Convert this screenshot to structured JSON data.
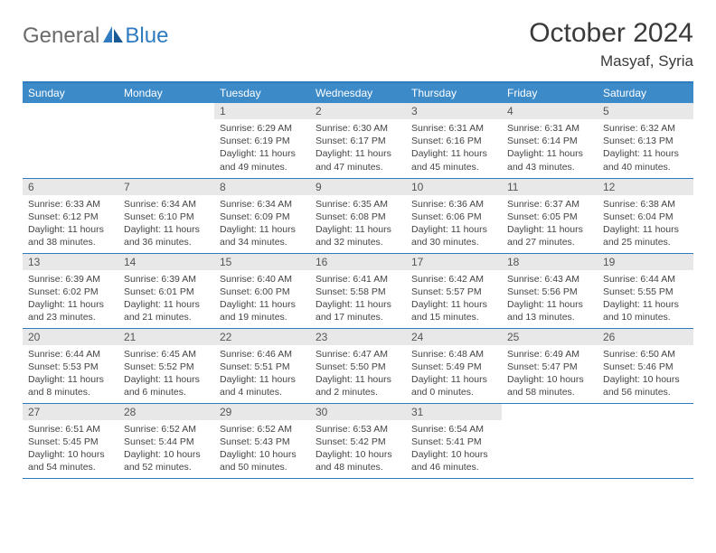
{
  "logo": {
    "part1": "General",
    "part2": "Blue"
  },
  "title": "October 2024",
  "location": "Masyaf, Syria",
  "colors": {
    "header_bg": "#3d8ac9",
    "border": "#2f7bbf",
    "daynum_bg": "#e8e8e8",
    "text": "#3a3a3a"
  },
  "weekdays": [
    "Sunday",
    "Monday",
    "Tuesday",
    "Wednesday",
    "Thursday",
    "Friday",
    "Saturday"
  ],
  "weeks": [
    [
      {
        "num": "",
        "lines": []
      },
      {
        "num": "",
        "lines": []
      },
      {
        "num": "1",
        "lines": [
          "Sunrise: 6:29 AM",
          "Sunset: 6:19 PM",
          "Daylight: 11 hours",
          "and 49 minutes."
        ]
      },
      {
        "num": "2",
        "lines": [
          "Sunrise: 6:30 AM",
          "Sunset: 6:17 PM",
          "Daylight: 11 hours",
          "and 47 minutes."
        ]
      },
      {
        "num": "3",
        "lines": [
          "Sunrise: 6:31 AM",
          "Sunset: 6:16 PM",
          "Daylight: 11 hours",
          "and 45 minutes."
        ]
      },
      {
        "num": "4",
        "lines": [
          "Sunrise: 6:31 AM",
          "Sunset: 6:14 PM",
          "Daylight: 11 hours",
          "and 43 minutes."
        ]
      },
      {
        "num": "5",
        "lines": [
          "Sunrise: 6:32 AM",
          "Sunset: 6:13 PM",
          "Daylight: 11 hours",
          "and 40 minutes."
        ]
      }
    ],
    [
      {
        "num": "6",
        "lines": [
          "Sunrise: 6:33 AM",
          "Sunset: 6:12 PM",
          "Daylight: 11 hours",
          "and 38 minutes."
        ]
      },
      {
        "num": "7",
        "lines": [
          "Sunrise: 6:34 AM",
          "Sunset: 6:10 PM",
          "Daylight: 11 hours",
          "and 36 minutes."
        ]
      },
      {
        "num": "8",
        "lines": [
          "Sunrise: 6:34 AM",
          "Sunset: 6:09 PM",
          "Daylight: 11 hours",
          "and 34 minutes."
        ]
      },
      {
        "num": "9",
        "lines": [
          "Sunrise: 6:35 AM",
          "Sunset: 6:08 PM",
          "Daylight: 11 hours",
          "and 32 minutes."
        ]
      },
      {
        "num": "10",
        "lines": [
          "Sunrise: 6:36 AM",
          "Sunset: 6:06 PM",
          "Daylight: 11 hours",
          "and 30 minutes."
        ]
      },
      {
        "num": "11",
        "lines": [
          "Sunrise: 6:37 AM",
          "Sunset: 6:05 PM",
          "Daylight: 11 hours",
          "and 27 minutes."
        ]
      },
      {
        "num": "12",
        "lines": [
          "Sunrise: 6:38 AM",
          "Sunset: 6:04 PM",
          "Daylight: 11 hours",
          "and 25 minutes."
        ]
      }
    ],
    [
      {
        "num": "13",
        "lines": [
          "Sunrise: 6:39 AM",
          "Sunset: 6:02 PM",
          "Daylight: 11 hours",
          "and 23 minutes."
        ]
      },
      {
        "num": "14",
        "lines": [
          "Sunrise: 6:39 AM",
          "Sunset: 6:01 PM",
          "Daylight: 11 hours",
          "and 21 minutes."
        ]
      },
      {
        "num": "15",
        "lines": [
          "Sunrise: 6:40 AM",
          "Sunset: 6:00 PM",
          "Daylight: 11 hours",
          "and 19 minutes."
        ]
      },
      {
        "num": "16",
        "lines": [
          "Sunrise: 6:41 AM",
          "Sunset: 5:58 PM",
          "Daylight: 11 hours",
          "and 17 minutes."
        ]
      },
      {
        "num": "17",
        "lines": [
          "Sunrise: 6:42 AM",
          "Sunset: 5:57 PM",
          "Daylight: 11 hours",
          "and 15 minutes."
        ]
      },
      {
        "num": "18",
        "lines": [
          "Sunrise: 6:43 AM",
          "Sunset: 5:56 PM",
          "Daylight: 11 hours",
          "and 13 minutes."
        ]
      },
      {
        "num": "19",
        "lines": [
          "Sunrise: 6:44 AM",
          "Sunset: 5:55 PM",
          "Daylight: 11 hours",
          "and 10 minutes."
        ]
      }
    ],
    [
      {
        "num": "20",
        "lines": [
          "Sunrise: 6:44 AM",
          "Sunset: 5:53 PM",
          "Daylight: 11 hours",
          "and 8 minutes."
        ]
      },
      {
        "num": "21",
        "lines": [
          "Sunrise: 6:45 AM",
          "Sunset: 5:52 PM",
          "Daylight: 11 hours",
          "and 6 minutes."
        ]
      },
      {
        "num": "22",
        "lines": [
          "Sunrise: 6:46 AM",
          "Sunset: 5:51 PM",
          "Daylight: 11 hours",
          "and 4 minutes."
        ]
      },
      {
        "num": "23",
        "lines": [
          "Sunrise: 6:47 AM",
          "Sunset: 5:50 PM",
          "Daylight: 11 hours",
          "and 2 minutes."
        ]
      },
      {
        "num": "24",
        "lines": [
          "Sunrise: 6:48 AM",
          "Sunset: 5:49 PM",
          "Daylight: 11 hours",
          "and 0 minutes."
        ]
      },
      {
        "num": "25",
        "lines": [
          "Sunrise: 6:49 AM",
          "Sunset: 5:47 PM",
          "Daylight: 10 hours",
          "and 58 minutes."
        ]
      },
      {
        "num": "26",
        "lines": [
          "Sunrise: 6:50 AM",
          "Sunset: 5:46 PM",
          "Daylight: 10 hours",
          "and 56 minutes."
        ]
      }
    ],
    [
      {
        "num": "27",
        "lines": [
          "Sunrise: 6:51 AM",
          "Sunset: 5:45 PM",
          "Daylight: 10 hours",
          "and 54 minutes."
        ]
      },
      {
        "num": "28",
        "lines": [
          "Sunrise: 6:52 AM",
          "Sunset: 5:44 PM",
          "Daylight: 10 hours",
          "and 52 minutes."
        ]
      },
      {
        "num": "29",
        "lines": [
          "Sunrise: 6:52 AM",
          "Sunset: 5:43 PM",
          "Daylight: 10 hours",
          "and 50 minutes."
        ]
      },
      {
        "num": "30",
        "lines": [
          "Sunrise: 6:53 AM",
          "Sunset: 5:42 PM",
          "Daylight: 10 hours",
          "and 48 minutes."
        ]
      },
      {
        "num": "31",
        "lines": [
          "Sunrise: 6:54 AM",
          "Sunset: 5:41 PM",
          "Daylight: 10 hours",
          "and 46 minutes."
        ]
      },
      {
        "num": "",
        "lines": []
      },
      {
        "num": "",
        "lines": []
      }
    ]
  ]
}
